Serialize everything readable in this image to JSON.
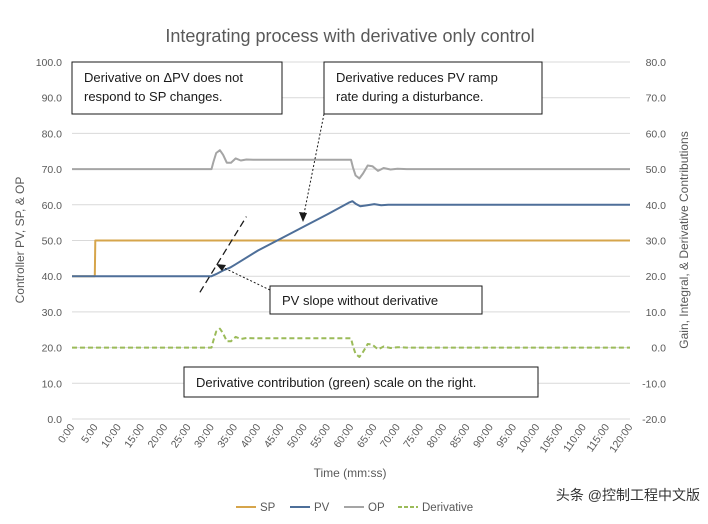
{
  "chart_data": {
    "type": "line",
    "title": "Integrating process with derivative only control",
    "xlabel": "Time (mm:ss)",
    "ylabel_left": "Controller PV, SP, & OP",
    "ylabel_right": "Gain, Integral, & Derivative Contributions",
    "x_tick_labels": [
      "0:00",
      "5:00",
      "10:00",
      "15:00",
      "20:00",
      "25:00",
      "30:00",
      "35:00",
      "40:00",
      "45:00",
      "50:00",
      "55:00",
      "60:00",
      "65:00",
      "70:00",
      "75:00",
      "80:00",
      "85:00",
      "90:00",
      "95:00",
      "100:00",
      "105:00",
      "110:00",
      "115:00",
      "120:00"
    ],
    "xlim": [
      0,
      120
    ],
    "ylim_left": [
      0,
      100
    ],
    "ylim_right": [
      -20,
      80
    ],
    "y_left_ticks": [
      "0.0",
      "10.0",
      "20.0",
      "30.0",
      "40.0",
      "50.0",
      "60.0",
      "70.0",
      "80.0",
      "90.0",
      "100.0"
    ],
    "y_right_ticks": [
      "-20.0",
      "-10.0",
      "0.0",
      "10.0",
      "20.0",
      "30.0",
      "40.0",
      "50.0",
      "60.0",
      "70.0",
      "80.0"
    ],
    "grid": "horizontal",
    "legend_position": "bottom",
    "series": [
      {
        "name": "SP",
        "axis": "left",
        "color": "#D6A54B",
        "dash": "solid",
        "points": [
          [
            0,
            40
          ],
          [
            4.9,
            40
          ],
          [
            5,
            50
          ],
          [
            120,
            50
          ]
        ]
      },
      {
        "name": "PV",
        "axis": "left",
        "color": "#4E6F99",
        "dash": "solid",
        "points": [
          [
            0,
            40
          ],
          [
            30,
            40
          ],
          [
            31,
            40.6
          ],
          [
            32.5,
            41.6
          ],
          [
            34,
            42.4
          ],
          [
            35,
            43.2
          ],
          [
            40,
            47.2
          ],
          [
            45,
            50.6
          ],
          [
            50,
            54
          ],
          [
            55,
            57.4
          ],
          [
            59.5,
            60.6
          ],
          [
            60.3,
            61
          ],
          [
            61,
            60.3
          ],
          [
            62,
            59.6
          ],
          [
            63.5,
            59.9
          ],
          [
            65,
            60.2
          ],
          [
            66.5,
            59.9
          ],
          [
            68,
            60
          ],
          [
            120,
            60
          ]
        ]
      },
      {
        "name": "OP",
        "axis": "left",
        "color": "#A5A5A5",
        "dash": "solid",
        "points": [
          [
            0,
            70
          ],
          [
            30,
            70
          ],
          [
            30.4,
            72
          ],
          [
            31,
            74.5
          ],
          [
            31.8,
            75.3
          ],
          [
            32.5,
            74
          ],
          [
            33.3,
            71.8
          ],
          [
            34.2,
            71.8
          ],
          [
            35.2,
            73
          ],
          [
            36.3,
            72.4
          ],
          [
            37.5,
            72.7
          ],
          [
            39,
            72.6
          ],
          [
            60,
            72.6
          ],
          [
            60.4,
            70.5
          ],
          [
            61,
            68.2
          ],
          [
            61.8,
            67.4
          ],
          [
            62.6,
            68.8
          ],
          [
            63.6,
            71
          ],
          [
            64.6,
            70.8
          ],
          [
            65.8,
            69.5
          ],
          [
            67,
            70.3
          ],
          [
            68.5,
            69.9
          ],
          [
            70,
            70.1
          ],
          [
            72,
            70
          ],
          [
            120,
            70
          ]
        ]
      },
      {
        "name": "Derivative",
        "axis": "right",
        "color": "#9BBB59",
        "dash": "dashed",
        "points": [
          [
            0,
            0
          ],
          [
            30,
            0
          ],
          [
            30.4,
            2
          ],
          [
            31,
            4.5
          ],
          [
            31.8,
            5.3
          ],
          [
            32.5,
            4
          ],
          [
            33.3,
            1.8
          ],
          [
            34.2,
            1.8
          ],
          [
            35.2,
            3
          ],
          [
            36.3,
            2.4
          ],
          [
            37.5,
            2.7
          ],
          [
            39,
            2.6
          ],
          [
            60,
            2.6
          ],
          [
            60.4,
            0.5
          ],
          [
            61,
            -1.8
          ],
          [
            61.8,
            -2.6
          ],
          [
            62.6,
            -1.2
          ],
          [
            63.6,
            1
          ],
          [
            64.6,
            0.8
          ],
          [
            65.8,
            -0.5
          ],
          [
            67,
            0.3
          ],
          [
            68.5,
            -0.1
          ],
          [
            70,
            0.1
          ],
          [
            72,
            0
          ],
          [
            120,
            0
          ]
        ]
      }
    ],
    "reference_line": {
      "name": "PV slope without derivative",
      "axis": "left",
      "color": "#1a1a1a",
      "dash": "dashed",
      "points": [
        [
          27.5,
          35.5
        ],
        [
          37.5,
          56.7
        ]
      ]
    },
    "annotations": [
      {
        "text_lines": [
          "Derivative on ΔPV does not",
          "respond to SP changes."
        ]
      },
      {
        "text_lines": [
          "Derivative reduces PV ramp",
          "rate during a disturbance."
        ],
        "points_to": [
          48,
          54.8
        ]
      },
      {
        "text_lines": [
          "PV slope without derivative"
        ],
        "points_to": [
          30.5,
          40.6
        ]
      },
      {
        "text_lines": [
          "Derivative contribution (green) scale on the right."
        ]
      }
    ]
  },
  "watermark": "头条 @控制工程中文版"
}
